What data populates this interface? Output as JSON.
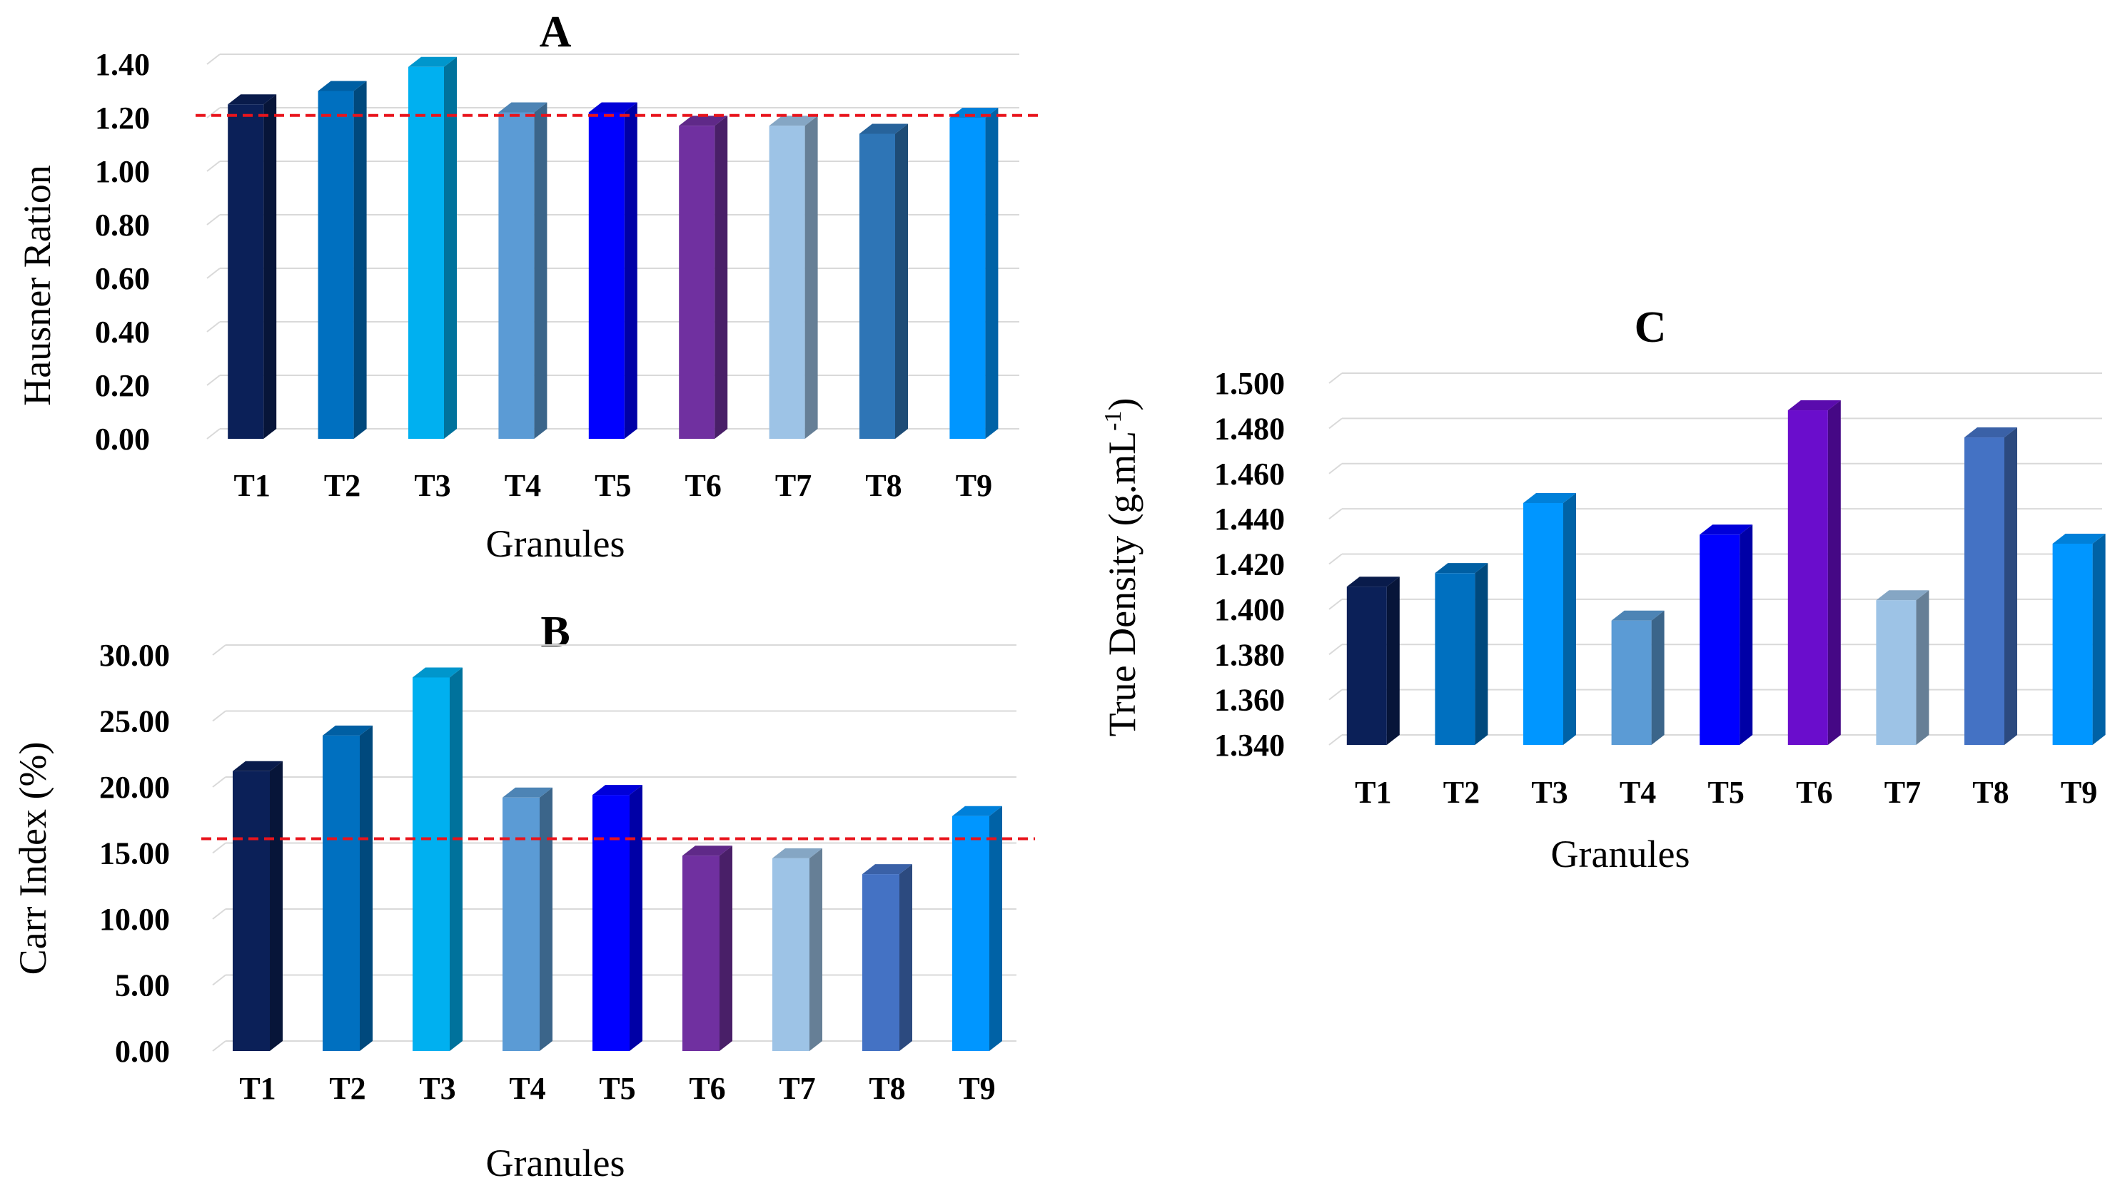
{
  "chart_data": [
    {
      "id": "A",
      "type": "bar",
      "title": "A",
      "xlabel": "Granules",
      "ylabel": "Hausner Ration",
      "categories": [
        "T1",
        "T2",
        "T3",
        "T4",
        "T5",
        "T6",
        "T7",
        "T8",
        "T9"
      ],
      "values": [
        1.25,
        1.3,
        1.39,
        1.22,
        1.22,
        1.17,
        1.17,
        1.14,
        1.2
      ],
      "ylim": [
        0,
        1.4
      ],
      "yticks": [
        "0.00",
        "0.20",
        "0.40",
        "0.60",
        "0.80",
        "1.00",
        "1.20",
        "1.40"
      ],
      "grid": true,
      "reference_line": {
        "value": 1.19,
        "color": "#e8141c",
        "style": "dashed"
      },
      "bar_colors": [
        "#0b2058",
        "#0070c0",
        "#00b0f0",
        "#5b9bd5",
        "#0000ff",
        "#7030a0",
        "#9dc3e6",
        "#2e75b6",
        "#0096ff"
      ]
    },
    {
      "id": "B",
      "type": "bar",
      "title": "B",
      "xlabel": "Granules",
      "ylabel": "Carr Index (%)",
      "categories": [
        "T1",
        "T2",
        "T3",
        "T4",
        "T5",
        "T6",
        "T7",
        "T8",
        "T9"
      ],
      "values": [
        21.2,
        23.9,
        28.3,
        19.2,
        19.4,
        14.8,
        14.6,
        13.4,
        17.8
      ],
      "ylim": [
        0,
        30.0
      ],
      "yticks": [
        "0.00",
        "5.00",
        "10.00",
        "15.00",
        "20.00",
        "25.00",
        "30.00"
      ],
      "grid": true,
      "reference_line": {
        "value": 15.7,
        "color": "#e8141c",
        "style": "dashed"
      },
      "bar_colors": [
        "#0b2058",
        "#0070c0",
        "#00b0f0",
        "#5b9bd5",
        "#0000ff",
        "#7030a0",
        "#9dc3e6",
        "#4472c4",
        "#0096ff"
      ]
    },
    {
      "id": "C",
      "type": "bar",
      "title": "C",
      "xlabel": "Granules",
      "ylabel": "True Density (g.mL",
      "ylabel_superscript": "-1",
      "ylabel_suffix": ")",
      "categories": [
        "T1",
        "T2",
        "T3",
        "T4",
        "T5",
        "T6",
        "T7",
        "T8",
        "T9"
      ],
      "values": [
        1.41,
        1.416,
        1.447,
        1.395,
        1.433,
        1.488,
        1.404,
        1.476,
        1.429
      ],
      "ylim": [
        1.34,
        1.5
      ],
      "yticks": [
        "1.340",
        "1.360",
        "1.380",
        "1.400",
        "1.420",
        "1.440",
        "1.460",
        "1.480",
        "1.500"
      ],
      "grid": true,
      "bar_colors": [
        "#0b2058",
        "#0070c0",
        "#0096ff",
        "#5b9bd5",
        "#0000ff",
        "#6a0dcc",
        "#9dc3e6",
        "#4472c4",
        "#0096ff"
      ]
    }
  ]
}
